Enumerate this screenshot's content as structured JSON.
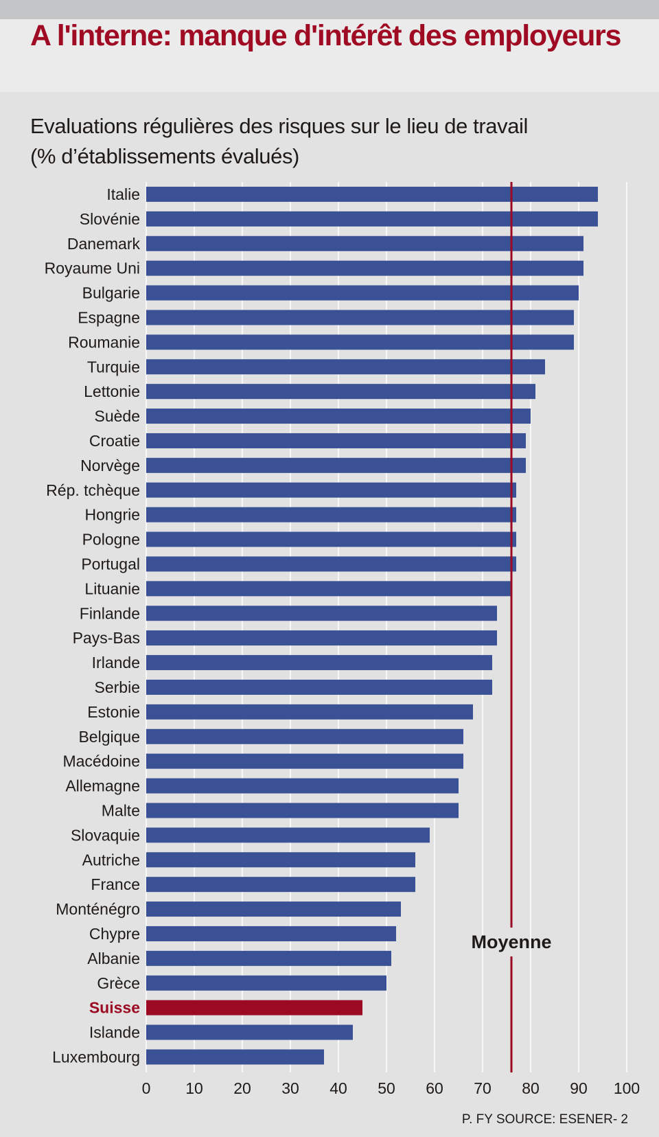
{
  "header": {
    "title": "A l'interne: manque d'intérêt des employeurs",
    "subtitle_line1": "Evaluations régulières des risques sur le lieu de travail",
    "subtitle_line2": "(% d’établissements évalués)"
  },
  "source": "P. FY SOURCE: ESENER- 2",
  "colors": {
    "bar": "#3a5295",
    "highlight": "#9b0a22",
    "average_line": "#9b0a22",
    "grid": "#ffffff",
    "text": "#1e1a17"
  },
  "chart_data": {
    "type": "bar",
    "orientation": "horizontal",
    "title": "Evaluations régulières des risques sur le lieu de travail",
    "xlabel": "",
    "ylabel": "",
    "unit": "%",
    "xlim": [
      0,
      100
    ],
    "x_ticks": [
      "0",
      "10",
      "20",
      "30",
      "40",
      "50",
      "60",
      "70",
      "80",
      "90",
      "100"
    ],
    "grid": true,
    "categories": [
      "Italie",
      "Slovénie",
      "Danemark",
      "Royaume Uni",
      "Bulgarie",
      "Espagne",
      "Roumanie",
      "Turquie",
      "Lettonie",
      "Suède",
      "Croatie",
      "Norvège",
      "Rép. tchèque",
      "Hongrie",
      "Pologne",
      "Portugal",
      "Lituanie",
      "Finlande",
      "Pays-Bas",
      "Irlande",
      "Serbie",
      "Estonie",
      "Belgique",
      "Macédoine",
      "Allemagne",
      "Malte",
      "Slovaquie",
      "Autriche",
      "France",
      "Monténégro",
      "Chypre",
      "Albanie",
      "Grèce",
      "Suisse",
      "Islande",
      "Luxembourg"
    ],
    "values": [
      94,
      94,
      91,
      91,
      90,
      89,
      89,
      83,
      81,
      80,
      79,
      79,
      77,
      77,
      77,
      77,
      76,
      73,
      73,
      72,
      72,
      68,
      66,
      66,
      65,
      65,
      59,
      56,
      56,
      53,
      52,
      51,
      50,
      45,
      43,
      37
    ],
    "highlight": "Suisse",
    "average": {
      "label": "Moyenne",
      "value": 76
    }
  }
}
